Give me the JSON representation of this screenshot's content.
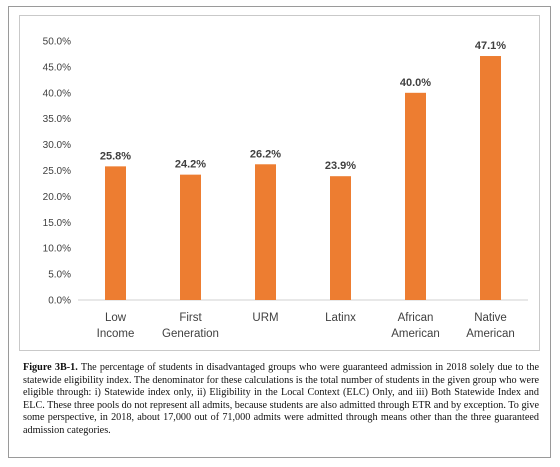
{
  "chart_data": {
    "type": "bar",
    "categories": [
      [
        "Low",
        "Income"
      ],
      [
        "First",
        "Generation"
      ],
      [
        "URM"
      ],
      [
        "Latinx"
      ],
      [
        "African",
        "American"
      ],
      [
        "Native",
        "American"
      ]
    ],
    "values": [
      25.8,
      24.2,
      26.2,
      23.9,
      40.0,
      47.1
    ],
    "data_labels": [
      "25.8%",
      "24.2%",
      "26.2%",
      "23.9%",
      "40.0%",
      "47.1%"
    ],
    "ylim": [
      0,
      50
    ],
    "yticks": [
      "0.0%",
      "5.0%",
      "10.0%",
      "15.0%",
      "20.0%",
      "25.0%",
      "30.0%",
      "35.0%",
      "40.0%",
      "45.0%",
      "50.0%"
    ],
    "grid": false,
    "bar_color": "#ED7D31"
  },
  "caption": {
    "label": "Figure 3B-1.",
    "text": "The percentage of students in disadvantaged groups who were guaranteed admission in 2018 solely due to the statewide eligibility index. The denominator for these calculations is the total number of students in the given group who were eligible through: i) Statewide index only, ii) Eligibility in the Local Context (ELC) Only, and iii) Both Statewide Index and ELC. These three pools do not represent all admits, because students are also admitted through ETR and by exception. To give some perspective, in 2018, about 17,000 out of 71,000 admits were admitted through means other than the three guaranteed admission categories."
  }
}
